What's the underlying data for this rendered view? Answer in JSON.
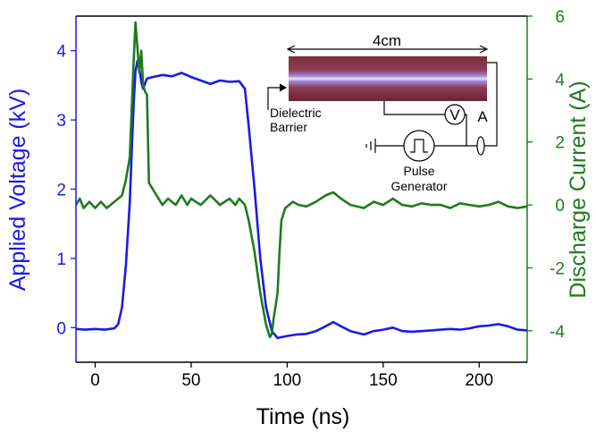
{
  "chart_data": {
    "type": "line",
    "xlabel": "Time (ns)",
    "ylabel_left": "Applied Voltage (kV)",
    "ylabel_right": "Discharge Current (A)",
    "xlim": [
      -10,
      225
    ],
    "ylim_left": [
      -0.5,
      4.5
    ],
    "ylim_right": [
      -5,
      6
    ],
    "x_ticks": [
      0,
      50,
      100,
      150,
      200
    ],
    "y_left_ticks": [
      0,
      1,
      2,
      3,
      4
    ],
    "y_right_ticks": [
      -4,
      -2,
      0,
      2,
      4,
      6
    ],
    "grid": false,
    "legend": "none",
    "colors": {
      "voltage": "#1a1ae6",
      "current": "#1f7a1f"
    },
    "series": [
      {
        "axis": "left",
        "color": "#1a1ae6",
        "points": [
          [
            -10,
            -0.02
          ],
          [
            -5,
            -0.03
          ],
          [
            0,
            -0.02
          ],
          [
            5,
            -0.03
          ],
          [
            10,
            -0.01
          ],
          [
            12,
            0.05
          ],
          [
            14,
            0.3
          ],
          [
            16,
            0.9
          ],
          [
            18,
            1.8
          ],
          [
            19,
            2.5
          ],
          [
            20,
            3.2
          ],
          [
            21,
            3.7
          ],
          [
            22,
            3.85
          ],
          [
            23,
            3.75
          ],
          [
            24,
            3.55
          ],
          [
            25,
            3.45
          ],
          [
            27,
            3.6
          ],
          [
            30,
            3.62
          ],
          [
            35,
            3.65
          ],
          [
            40,
            3.63
          ],
          [
            45,
            3.68
          ],
          [
            50,
            3.62
          ],
          [
            55,
            3.57
          ],
          [
            60,
            3.52
          ],
          [
            65,
            3.57
          ],
          [
            70,
            3.55
          ],
          [
            75,
            3.56
          ],
          [
            78,
            3.45
          ],
          [
            80,
            2.9
          ],
          [
            83,
            2.0
          ],
          [
            86,
            1.0
          ],
          [
            89,
            0.3
          ],
          [
            92,
            -0.05
          ],
          [
            95,
            -0.15
          ],
          [
            100,
            -0.12
          ],
          [
            105,
            -0.1
          ],
          [
            110,
            -0.09
          ],
          [
            115,
            -0.05
          ],
          [
            120,
            0.02
          ],
          [
            124,
            0.08
          ],
          [
            128,
            0.02
          ],
          [
            133,
            -0.05
          ],
          [
            140,
            -0.1
          ],
          [
            145,
            -0.05
          ],
          [
            150,
            -0.03
          ],
          [
            155,
            0.0
          ],
          [
            160,
            -0.05
          ],
          [
            165,
            -0.06
          ],
          [
            170,
            -0.05
          ],
          [
            175,
            -0.04
          ],
          [
            180,
            -0.03
          ],
          [
            185,
            -0.02
          ],
          [
            190,
            -0.03
          ],
          [
            195,
            -0.01
          ],
          [
            200,
            0.02
          ],
          [
            205,
            0.03
          ],
          [
            210,
            0.05
          ],
          [
            215,
            0.02
          ],
          [
            220,
            -0.03
          ],
          [
            225,
            -0.04
          ]
        ]
      },
      {
        "axis": "right",
        "color": "#1f7a1f",
        "points": [
          [
            -10,
            0.0
          ],
          [
            -8,
            0.2
          ],
          [
            -6,
            -0.1
          ],
          [
            -3,
            0.1
          ],
          [
            0,
            -0.1
          ],
          [
            3,
            0.1
          ],
          [
            6,
            -0.1
          ],
          [
            10,
            0.1
          ],
          [
            14,
            0.3
          ],
          [
            16,
            0.8
          ],
          [
            18,
            1.5
          ],
          [
            19,
            3.0
          ],
          [
            20,
            4.5
          ],
          [
            21,
            5.8
          ],
          [
            22,
            5.0
          ],
          [
            23,
            4.2
          ],
          [
            24,
            4.9
          ],
          [
            25,
            3.8
          ],
          [
            26,
            3.6
          ],
          [
            27,
            3.5
          ],
          [
            28,
            0.7
          ],
          [
            30,
            0.5
          ],
          [
            32,
            0.3
          ],
          [
            35,
            0.0
          ],
          [
            38,
            0.2
          ],
          [
            40,
            0.1
          ],
          [
            42,
            0.0
          ],
          [
            45,
            0.3
          ],
          [
            48,
            0.0
          ],
          [
            50,
            0.2
          ],
          [
            55,
            0.0
          ],
          [
            60,
            0.3
          ],
          [
            65,
            0.0
          ],
          [
            70,
            0.2
          ],
          [
            73,
            0.0
          ],
          [
            75,
            0.2
          ],
          [
            78,
            0.0
          ],
          [
            80,
            -0.5
          ],
          [
            83,
            -1.5
          ],
          [
            86,
            -2.8
          ],
          [
            89,
            -3.8
          ],
          [
            91,
            -4.2
          ],
          [
            92,
            -4.1
          ],
          [
            93,
            -3.6
          ],
          [
            94,
            -3.2
          ],
          [
            95,
            -2.8
          ],
          [
            96,
            -1.5
          ],
          [
            97,
            -0.5
          ],
          [
            99,
            -0.1
          ],
          [
            103,
            0.1
          ],
          [
            106,
            0.0
          ],
          [
            110,
            -0.05
          ],
          [
            115,
            0.1
          ],
          [
            120,
            0.3
          ],
          [
            124,
            0.4
          ],
          [
            128,
            0.2
          ],
          [
            133,
            0.0
          ],
          [
            140,
            -0.1
          ],
          [
            145,
            0.1
          ],
          [
            150,
            0.0
          ],
          [
            155,
            0.2
          ],
          [
            160,
            0.0
          ],
          [
            165,
            -0.05
          ],
          [
            170,
            0.05
          ],
          [
            175,
            0.0
          ],
          [
            180,
            0.0
          ],
          [
            185,
            -0.1
          ],
          [
            190,
            0.05
          ],
          [
            195,
            0.0
          ],
          [
            200,
            -0.05
          ],
          [
            205,
            0.0
          ],
          [
            210,
            0.1
          ],
          [
            215,
            -0.05
          ],
          [
            220,
            -0.1
          ],
          [
            225,
            -0.05
          ]
        ]
      }
    ],
    "inset": {
      "length_label": "4cm",
      "dielectric_label_line1": "Dielectric",
      "dielectric_label_line2": "Barrier",
      "voltmeter_symbol": "V",
      "ammeter_symbol": "A",
      "pulse_label_line1": "Pulse",
      "pulse_label_line2": "Generator"
    }
  }
}
